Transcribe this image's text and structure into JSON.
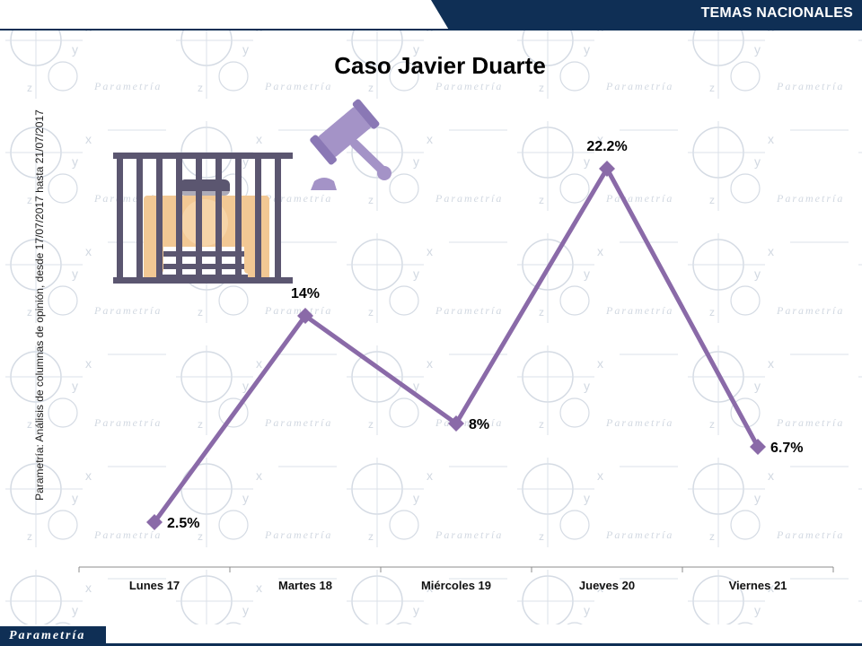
{
  "header": {
    "section_label": "TEMAS NACIONALES"
  },
  "title": "Caso Javier Duarte",
  "source_note": "Parametría: Análisis de columnas de opinión, desde 17/07/2017 hasta 21/07/2017",
  "footer": {
    "logo_text": "Parametría"
  },
  "watermark_text": "Parametría",
  "colors": {
    "line": "#8a6aa8",
    "header": "#0f2f55",
    "illustration": "#5b5670",
    "accent": "#b9aad6"
  },
  "icons": [
    "jail-cell-icon",
    "gavel-icon"
  ],
  "chart_data": {
    "type": "line",
    "categories": [
      "Lunes 17",
      "Martes 18",
      "Miércoles 19",
      "Jueves 20",
      "Viernes 21"
    ],
    "series": [
      {
        "values": [
          2.5,
          14,
          8,
          22.2,
          6.7
        ],
        "labels": [
          "2.5%",
          "14%",
          "8%",
          "22.2%",
          "6.7%"
        ]
      }
    ],
    "title": "Caso Javier Duarte",
    "xlabel": "",
    "ylabel": "",
    "ylim": [
      0,
      25
    ],
    "grid": false,
    "legend": "none"
  }
}
